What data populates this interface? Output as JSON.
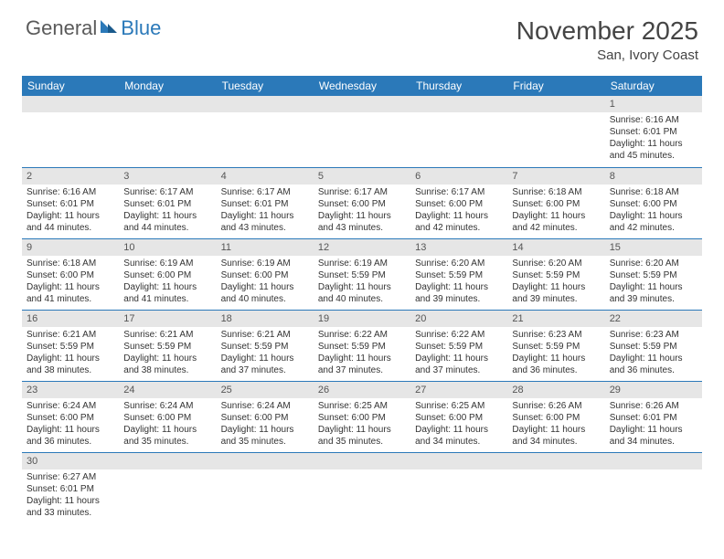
{
  "brand": {
    "general": "General",
    "blue": "Blue"
  },
  "title": {
    "month": "November 2025",
    "location": "San, Ivory Coast"
  },
  "day_headers": [
    "Sunday",
    "Monday",
    "Tuesday",
    "Wednesday",
    "Thursday",
    "Friday",
    "Saturday"
  ],
  "colors": {
    "header_bg": "#2b79b9",
    "header_text": "#ffffff",
    "daynum_bg": "#e6e6e6",
    "row_border": "#2b79b9",
    "logo_blue": "#2b79b9",
    "logo_gray": "#5a5a5a",
    "body_text": "#333333",
    "page_bg": "#ffffff"
  },
  "typography": {
    "month_fontsize": 28,
    "location_fontsize": 15,
    "header_fontsize": 12,
    "cell_fontsize": 10,
    "daynum_fontsize": 11,
    "logo_fontsize": 22
  },
  "weeks": [
    [
      {
        "blank": true
      },
      {
        "blank": true
      },
      {
        "blank": true
      },
      {
        "blank": true
      },
      {
        "blank": true
      },
      {
        "blank": true
      },
      {
        "day": "1",
        "sunrise": "Sunrise: 6:16 AM",
        "sunset": "Sunset: 6:01 PM",
        "dl1": "Daylight: 11 hours",
        "dl2": "and 45 minutes."
      }
    ],
    [
      {
        "day": "2",
        "sunrise": "Sunrise: 6:16 AM",
        "sunset": "Sunset: 6:01 PM",
        "dl1": "Daylight: 11 hours",
        "dl2": "and 44 minutes."
      },
      {
        "day": "3",
        "sunrise": "Sunrise: 6:17 AM",
        "sunset": "Sunset: 6:01 PM",
        "dl1": "Daylight: 11 hours",
        "dl2": "and 44 minutes."
      },
      {
        "day": "4",
        "sunrise": "Sunrise: 6:17 AM",
        "sunset": "Sunset: 6:01 PM",
        "dl1": "Daylight: 11 hours",
        "dl2": "and 43 minutes."
      },
      {
        "day": "5",
        "sunrise": "Sunrise: 6:17 AM",
        "sunset": "Sunset: 6:00 PM",
        "dl1": "Daylight: 11 hours",
        "dl2": "and 43 minutes."
      },
      {
        "day": "6",
        "sunrise": "Sunrise: 6:17 AM",
        "sunset": "Sunset: 6:00 PM",
        "dl1": "Daylight: 11 hours",
        "dl2": "and 42 minutes."
      },
      {
        "day": "7",
        "sunrise": "Sunrise: 6:18 AM",
        "sunset": "Sunset: 6:00 PM",
        "dl1": "Daylight: 11 hours",
        "dl2": "and 42 minutes."
      },
      {
        "day": "8",
        "sunrise": "Sunrise: 6:18 AM",
        "sunset": "Sunset: 6:00 PM",
        "dl1": "Daylight: 11 hours",
        "dl2": "and 42 minutes."
      }
    ],
    [
      {
        "day": "9",
        "sunrise": "Sunrise: 6:18 AM",
        "sunset": "Sunset: 6:00 PM",
        "dl1": "Daylight: 11 hours",
        "dl2": "and 41 minutes."
      },
      {
        "day": "10",
        "sunrise": "Sunrise: 6:19 AM",
        "sunset": "Sunset: 6:00 PM",
        "dl1": "Daylight: 11 hours",
        "dl2": "and 41 minutes."
      },
      {
        "day": "11",
        "sunrise": "Sunrise: 6:19 AM",
        "sunset": "Sunset: 6:00 PM",
        "dl1": "Daylight: 11 hours",
        "dl2": "and 40 minutes."
      },
      {
        "day": "12",
        "sunrise": "Sunrise: 6:19 AM",
        "sunset": "Sunset: 5:59 PM",
        "dl1": "Daylight: 11 hours",
        "dl2": "and 40 minutes."
      },
      {
        "day": "13",
        "sunrise": "Sunrise: 6:20 AM",
        "sunset": "Sunset: 5:59 PM",
        "dl1": "Daylight: 11 hours",
        "dl2": "and 39 minutes."
      },
      {
        "day": "14",
        "sunrise": "Sunrise: 6:20 AM",
        "sunset": "Sunset: 5:59 PM",
        "dl1": "Daylight: 11 hours",
        "dl2": "and 39 minutes."
      },
      {
        "day": "15",
        "sunrise": "Sunrise: 6:20 AM",
        "sunset": "Sunset: 5:59 PM",
        "dl1": "Daylight: 11 hours",
        "dl2": "and 39 minutes."
      }
    ],
    [
      {
        "day": "16",
        "sunrise": "Sunrise: 6:21 AM",
        "sunset": "Sunset: 5:59 PM",
        "dl1": "Daylight: 11 hours",
        "dl2": "and 38 minutes."
      },
      {
        "day": "17",
        "sunrise": "Sunrise: 6:21 AM",
        "sunset": "Sunset: 5:59 PM",
        "dl1": "Daylight: 11 hours",
        "dl2": "and 38 minutes."
      },
      {
        "day": "18",
        "sunrise": "Sunrise: 6:21 AM",
        "sunset": "Sunset: 5:59 PM",
        "dl1": "Daylight: 11 hours",
        "dl2": "and 37 minutes."
      },
      {
        "day": "19",
        "sunrise": "Sunrise: 6:22 AM",
        "sunset": "Sunset: 5:59 PM",
        "dl1": "Daylight: 11 hours",
        "dl2": "and 37 minutes."
      },
      {
        "day": "20",
        "sunrise": "Sunrise: 6:22 AM",
        "sunset": "Sunset: 5:59 PM",
        "dl1": "Daylight: 11 hours",
        "dl2": "and 37 minutes."
      },
      {
        "day": "21",
        "sunrise": "Sunrise: 6:23 AM",
        "sunset": "Sunset: 5:59 PM",
        "dl1": "Daylight: 11 hours",
        "dl2": "and 36 minutes."
      },
      {
        "day": "22",
        "sunrise": "Sunrise: 6:23 AM",
        "sunset": "Sunset: 5:59 PM",
        "dl1": "Daylight: 11 hours",
        "dl2": "and 36 minutes."
      }
    ],
    [
      {
        "day": "23",
        "sunrise": "Sunrise: 6:24 AM",
        "sunset": "Sunset: 6:00 PM",
        "dl1": "Daylight: 11 hours",
        "dl2": "and 36 minutes."
      },
      {
        "day": "24",
        "sunrise": "Sunrise: 6:24 AM",
        "sunset": "Sunset: 6:00 PM",
        "dl1": "Daylight: 11 hours",
        "dl2": "and 35 minutes."
      },
      {
        "day": "25",
        "sunrise": "Sunrise: 6:24 AM",
        "sunset": "Sunset: 6:00 PM",
        "dl1": "Daylight: 11 hours",
        "dl2": "and 35 minutes."
      },
      {
        "day": "26",
        "sunrise": "Sunrise: 6:25 AM",
        "sunset": "Sunset: 6:00 PM",
        "dl1": "Daylight: 11 hours",
        "dl2": "and 35 minutes."
      },
      {
        "day": "27",
        "sunrise": "Sunrise: 6:25 AM",
        "sunset": "Sunset: 6:00 PM",
        "dl1": "Daylight: 11 hours",
        "dl2": "and 34 minutes."
      },
      {
        "day": "28",
        "sunrise": "Sunrise: 6:26 AM",
        "sunset": "Sunset: 6:00 PM",
        "dl1": "Daylight: 11 hours",
        "dl2": "and 34 minutes."
      },
      {
        "day": "29",
        "sunrise": "Sunrise: 6:26 AM",
        "sunset": "Sunset: 6:01 PM",
        "dl1": "Daylight: 11 hours",
        "dl2": "and 34 minutes."
      }
    ],
    [
      {
        "day": "30",
        "sunrise": "Sunrise: 6:27 AM",
        "sunset": "Sunset: 6:01 PM",
        "dl1": "Daylight: 11 hours",
        "dl2": "and 33 minutes."
      },
      {
        "blank": true
      },
      {
        "blank": true
      },
      {
        "blank": true
      },
      {
        "blank": true
      },
      {
        "blank": true
      },
      {
        "blank": true
      }
    ]
  ]
}
